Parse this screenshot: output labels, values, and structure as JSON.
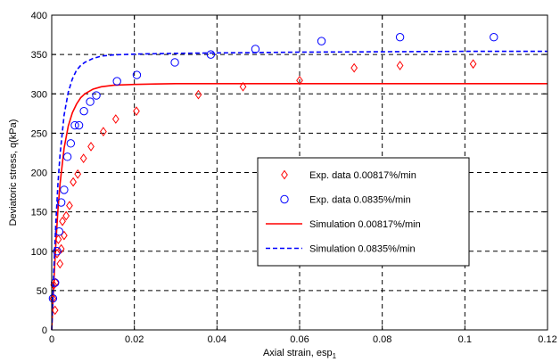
{
  "chart_data": {
    "type": "scatter",
    "xlabel": "Axial strain, esp",
    "xlabel_sub": "1",
    "ylabel": "Deviatoric stress, q(kPa)",
    "xlim": [
      0,
      0.12
    ],
    "ylim": [
      0,
      400
    ],
    "xticks": [
      "0",
      "0.02",
      "0.04",
      "0.06",
      "0.08",
      "0.1",
      "0.12"
    ],
    "yticks": [
      "0",
      "50",
      "100",
      "150",
      "200",
      "250",
      "300",
      "350",
      "400"
    ],
    "grid": "dashed",
    "legend_position": "center-right",
    "series": [
      {
        "name": "Exp. data 0.00817%/min",
        "kind": "marker",
        "marker": "diamond",
        "color": "#ff0000",
        "x": [
          0.0003,
          0.0005,
          0.0008,
          0.001,
          0.0013,
          0.0016,
          0.002,
          0.0023,
          0.0026,
          0.003,
          0.0035,
          0.0043,
          0.0052,
          0.0063,
          0.0077,
          0.0095,
          0.0125,
          0.0155,
          0.0205,
          0.0355,
          0.0463,
          0.06,
          0.0732,
          0.0843,
          0.102
        ],
        "y": [
          40,
          57,
          25,
          60,
          97,
          115,
          84,
          103,
          138,
          120,
          145,
          158,
          188,
          198,
          218,
          233,
          252,
          268,
          278,
          299,
          309,
          317,
          333,
          336,
          338
        ]
      },
      {
        "name": "Exp. data 0.0835%/min",
        "kind": "marker",
        "marker": "circle",
        "color": "#0000ff",
        "x": [
          0.0003,
          0.0008,
          0.0013,
          0.0018,
          0.0023,
          0.003,
          0.0038,
          0.0046,
          0.0056,
          0.0066,
          0.0078,
          0.0093,
          0.0108,
          0.0158,
          0.0206,
          0.0298,
          0.0385,
          0.0493,
          0.0653,
          0.0843,
          0.107
        ],
        "y": [
          40,
          60,
          100,
          125,
          162,
          178,
          220,
          237,
          260,
          260,
          278,
          290,
          298,
          316,
          324,
          340,
          350,
          357,
          367,
          372,
          372
        ]
      },
      {
        "name": "Simulation 0.00817%/min",
        "kind": "line",
        "style": "solid",
        "color": "#ff0000",
        "x": [
          0,
          0.0005,
          0.001,
          0.0015,
          0.002,
          0.003,
          0.004,
          0.005,
          0.006,
          0.007,
          0.008,
          0.01,
          0.012,
          0.015,
          0.02,
          0.025,
          0.03,
          0.04,
          0.06,
          0.08,
          0.1,
          0.12
        ],
        "y": [
          0,
          60,
          110,
          152,
          185,
          231,
          259,
          276,
          287,
          295,
          300,
          306,
          309,
          311,
          312,
          312.5,
          313,
          313,
          313,
          313,
          313,
          313
        ]
      },
      {
        "name": "Simulation 0.0835%/min",
        "kind": "line",
        "style": "dashed",
        "color": "#0000ff",
        "x": [
          0,
          0.0005,
          0.001,
          0.0015,
          0.002,
          0.003,
          0.004,
          0.005,
          0.006,
          0.007,
          0.008,
          0.01,
          0.012,
          0.015,
          0.02,
          0.025,
          0.03,
          0.04,
          0.06,
          0.08,
          0.1,
          0.12
        ],
        "y": [
          0,
          75,
          136,
          185,
          222,
          273,
          302,
          319,
          330,
          336,
          340,
          345,
          348,
          349.5,
          350.5,
          351,
          351.5,
          352,
          353,
          353.5,
          354,
          354
        ]
      }
    ]
  }
}
